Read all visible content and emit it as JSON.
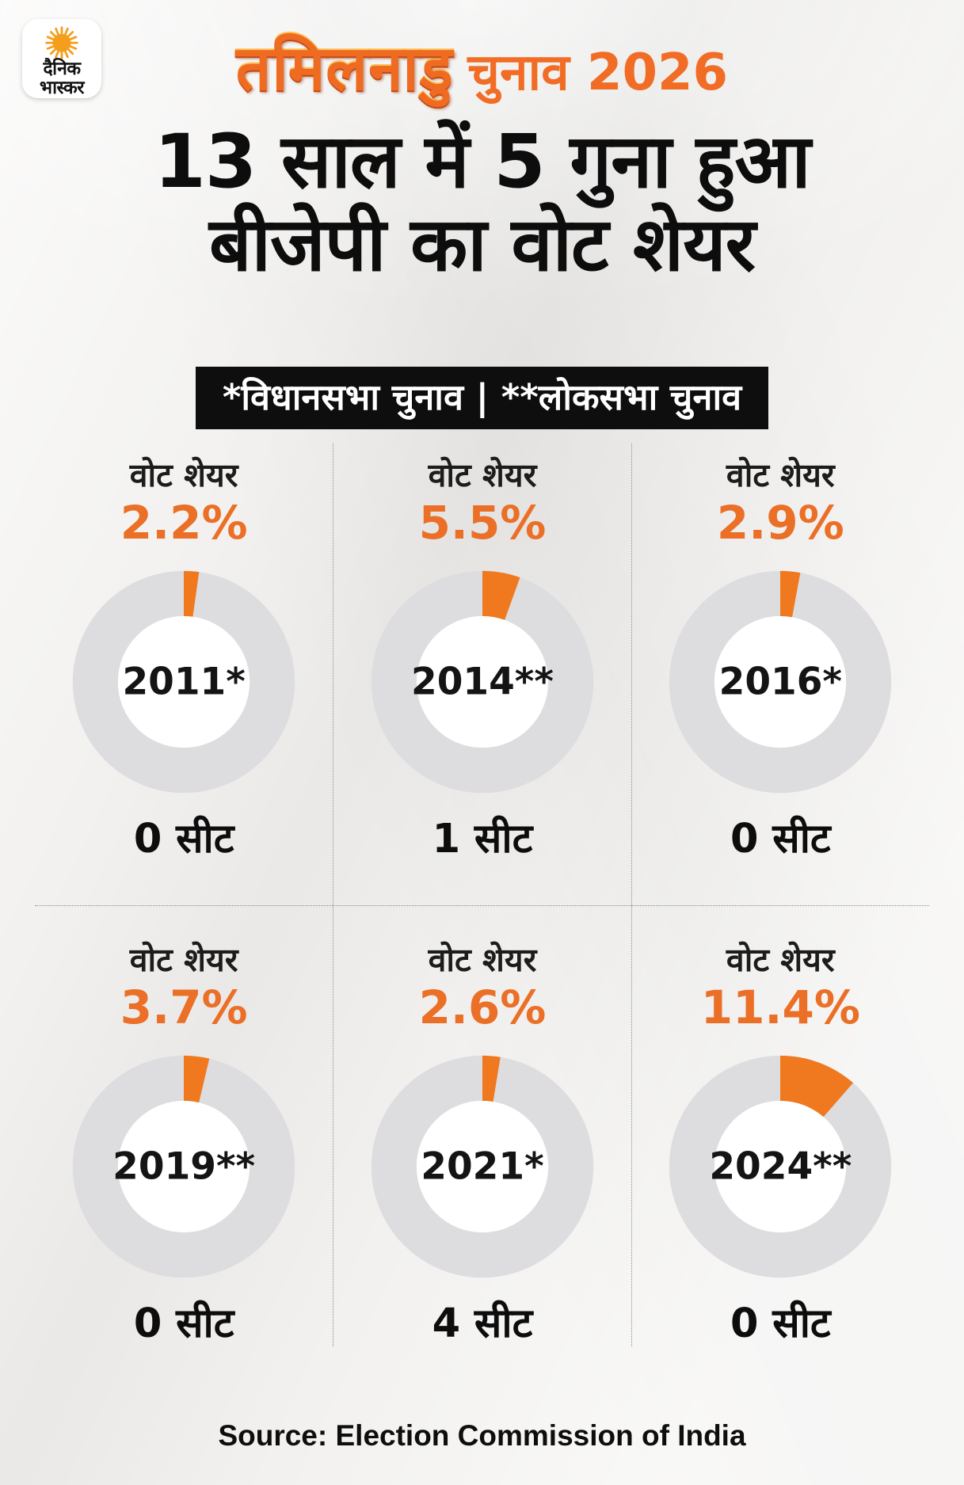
{
  "logo": {
    "line1": "दैनिक",
    "line2": "भास्कर",
    "sun_color": "#F49E1C"
  },
  "masthead": {
    "decorated": "तमिलनाडु",
    "plain": "चुनाव 2026"
  },
  "headline": {
    "line1": "13 साल में 5 गुना हुआ",
    "line2": "बीजेपी का वोट शेयर"
  },
  "legend": "*विधानसभा चुनाव  |  **लोकसभा चुनाव",
  "source": "Source: Election Commission of India",
  "colors": {
    "accent": "#EB6F27",
    "slice": "#F0791F",
    "ring": "#DDDDE0",
    "hole": "#FFFFFF",
    "banner_bg": "#0E0E0E",
    "banner_text": "#FFFFFF"
  },
  "chart_data": {
    "type": "pie",
    "variant": "donut",
    "title": "13 साल में 5 गुना हुआ बीजेपी का वोट शेयर",
    "subtitle": "तमिलनाडु चुनाव 2026",
    "note": "*विधानसभा चुनाव | **लोकसभा चुनाव",
    "value_label": "वोट शेयर",
    "unit": "%",
    "layout": "2 rows x 3 columns, slice starts at 12 o'clock clockwise",
    "charts": [
      {
        "year": "2011*",
        "vote_share_pct": 2.2,
        "pct_label": "2.2%",
        "seats": 0,
        "seats_label": "0 सीट"
      },
      {
        "year": "2014**",
        "vote_share_pct": 5.5,
        "pct_label": "5.5%",
        "seats": 1,
        "seats_label": "1 सीट"
      },
      {
        "year": "2016*",
        "vote_share_pct": 2.9,
        "pct_label": "2.9%",
        "seats": 0,
        "seats_label": "0 सीट"
      },
      {
        "year": "2019**",
        "vote_share_pct": 3.7,
        "pct_label": "3.7%",
        "seats": 0,
        "seats_label": "0 सीट"
      },
      {
        "year": "2021*",
        "vote_share_pct": 2.6,
        "pct_label": "2.6%",
        "seats": 4,
        "seats_label": "4 सीट"
      },
      {
        "year": "2024**",
        "vote_share_pct": 11.4,
        "pct_label": "11.4%",
        "seats": 0,
        "seats_label": "0 सीट"
      }
    ]
  }
}
